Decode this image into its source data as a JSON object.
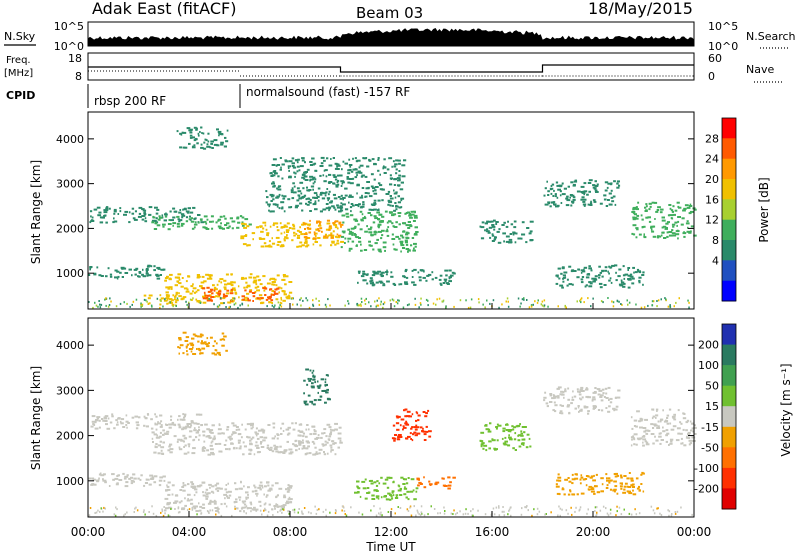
{
  "header": {
    "title": "Adak East (fitACF)",
    "beam": "Beam 03",
    "date": "18/May/2015"
  },
  "top_panels": {
    "nsky_label": "N.Sky",
    "nsky_ticks": [
      "10^5",
      "10^0"
    ],
    "nsearch_label": "N.Search",
    "nsearch_ticks": [
      "10^5",
      "10^0"
    ],
    "freq_label": "Freq.",
    "freq_unit": "[MHz]",
    "freq_ticks": [
      "18",
      "8"
    ],
    "nave_label": "Nave",
    "nave_ticks": [
      "60",
      "0"
    ],
    "cpid_label": "CPID",
    "cpid_segments": [
      {
        "label": "rbsp 200 RF",
        "start_h": 0,
        "end_h": 6
      },
      {
        "label": "normalsound (fast) -157 RF",
        "start_h": 6,
        "end_h": 24
      }
    ]
  },
  "chart_data": [
    {
      "type": "heatmap",
      "name": "power",
      "ylabel": "Slant Range [km]",
      "yticks": [
        1000,
        2000,
        3000,
        4000
      ],
      "ylim": [
        200,
        4600
      ],
      "xlim": [
        0,
        24
      ],
      "colorbar_label": "Power [dB]",
      "colorbar_ticks": [
        "28",
        "24",
        "20",
        "16",
        "12",
        "8",
        "4"
      ],
      "colorbar_colors": [
        "#ff0000",
        "#ff5a00",
        "#ff9900",
        "#f0c000",
        "#a8d030",
        "#3fae5c",
        "#2a8a6a",
        "#2050c0",
        "#0000ff"
      ],
      "regions": [
        {
          "t0": 0.0,
          "t1": 4.5,
          "r0": 2150,
          "r1": 2500,
          "db": 8
        },
        {
          "t0": 2.5,
          "t1": 6.5,
          "r0": 2000,
          "r1": 2300,
          "db": 12
        },
        {
          "t0": 6.0,
          "t1": 10.0,
          "r0": 1600,
          "r1": 2150,
          "db": 18
        },
        {
          "t0": 8.5,
          "t1": 10.0,
          "r0": 1800,
          "r1": 2200,
          "db": 22
        },
        {
          "t0": 0.0,
          "t1": 3.0,
          "r0": 900,
          "r1": 1200,
          "db": 8
        },
        {
          "t0": 3.0,
          "t1": 8.0,
          "r0": 350,
          "r1": 1000,
          "db": 20
        },
        {
          "t0": 4.5,
          "t1": 7.5,
          "r0": 400,
          "r1": 700,
          "db": 26
        },
        {
          "t0": 2.0,
          "t1": 3.5,
          "r0": 300,
          "r1": 550,
          "db": 18
        },
        {
          "t0": 10.0,
          "t1": 13.0,
          "r0": 1500,
          "r1": 2400,
          "db": 10
        },
        {
          "t0": 10.5,
          "t1": 14.5,
          "r0": 750,
          "r1": 1100,
          "db": 8
        },
        {
          "t0": 3.5,
          "t1": 5.5,
          "r0": 3800,
          "r1": 4300,
          "db": 6
        },
        {
          "t0": 15.5,
          "t1": 17.5,
          "r0": 1700,
          "r1": 2200,
          "db": 6
        },
        {
          "t0": 18.0,
          "t1": 21.0,
          "r0": 2500,
          "r1": 3100,
          "db": 8
        },
        {
          "t0": 21.5,
          "t1": 24.0,
          "r0": 1800,
          "r1": 2600,
          "db": 12
        },
        {
          "t0": 18.5,
          "t1": 22.0,
          "r0": 700,
          "r1": 1200,
          "db": 6
        },
        {
          "t0": 7.0,
          "t1": 12.5,
          "r0": 2400,
          "r1": 3600,
          "db": 5
        }
      ]
    },
    {
      "type": "heatmap",
      "name": "velocity",
      "ylabel": "Slant Range [km]",
      "yticks": [
        1000,
        2000,
        3000,
        4000
      ],
      "ylim": [
        200,
        4600
      ],
      "xlim": [
        0,
        24
      ],
      "xticks": [
        "00:00",
        "04:00",
        "08:00",
        "12:00",
        "16:00",
        "20:00",
        "00:00"
      ],
      "xlabel": "Time UT",
      "colorbar_label": "Velocity [m s⁻¹]",
      "colorbar_ticks": [
        "200",
        "100",
        "50",
        "15",
        "-15",
        "-50",
        "-100",
        "-200"
      ],
      "colorbar_colors": [
        "#2030b0",
        "#2a7a60",
        "#40a050",
        "#70c030",
        "#c8c8c0",
        "#f0a000",
        "#ff7000",
        "#ff3000",
        "#e00000"
      ],
      "regions": [
        {
          "t0": 0.0,
          "t1": 4.5,
          "r0": 2150,
          "r1": 2500,
          "v": 0
        },
        {
          "t0": 2.5,
          "t1": 10.0,
          "r0": 1600,
          "r1": 2300,
          "v": 0
        },
        {
          "t0": 0.0,
          "t1": 3.0,
          "r0": 900,
          "r1": 1200,
          "v": 0
        },
        {
          "t0": 3.0,
          "t1": 8.0,
          "r0": 350,
          "r1": 1000,
          "v": 0
        },
        {
          "t0": 3.5,
          "t1": 5.5,
          "r0": 3800,
          "r1": 4300,
          "v": -30
        },
        {
          "t0": 10.5,
          "t1": 13.0,
          "r0": 600,
          "r1": 1100,
          "v": 40
        },
        {
          "t0": 13.0,
          "t1": 14.5,
          "r0": 850,
          "r1": 1100,
          "v": -60
        },
        {
          "t0": 12.0,
          "t1": 13.5,
          "r0": 1900,
          "r1": 2600,
          "v": -150
        },
        {
          "t0": 8.5,
          "t1": 9.5,
          "r0": 2700,
          "r1": 3500,
          "v": 120
        },
        {
          "t0": 15.5,
          "t1": 17.5,
          "r0": 1700,
          "r1": 2300,
          "v": 40
        },
        {
          "t0": 18.0,
          "t1": 21.0,
          "r0": 2500,
          "r1": 3100,
          "v": 0
        },
        {
          "t0": 21.5,
          "t1": 24.0,
          "r0": 1800,
          "r1": 2600,
          "v": 0
        },
        {
          "t0": 18.5,
          "t1": 22.0,
          "r0": 700,
          "r1": 1200,
          "v": -20
        }
      ]
    }
  ]
}
